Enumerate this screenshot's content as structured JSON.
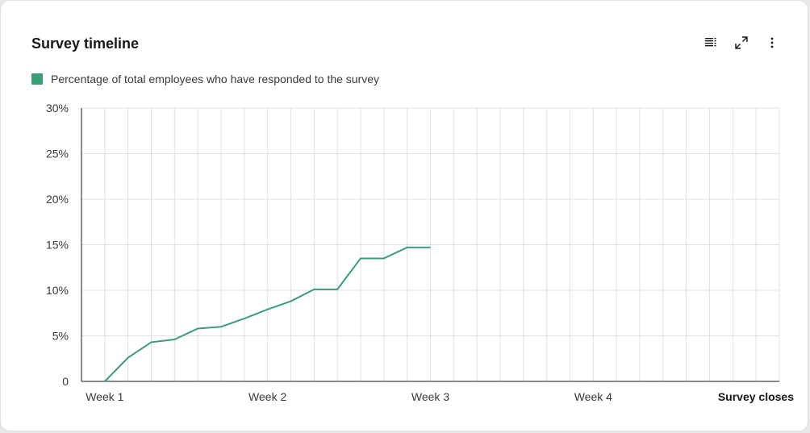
{
  "card": {
    "title": "Survey timeline"
  },
  "toolbar": {
    "table_icon": "table-view-icon",
    "expand_icon": "maximize-icon",
    "menu_icon": "overflow-menu-vertical-icon"
  },
  "legend": {
    "label": "Percentage of total employees who have responded to the survey",
    "color": "#3a9e74"
  },
  "chart_data": {
    "type": "line",
    "x_ticks": [
      "Week 1",
      "Week 2",
      "Week 3",
      "Week 4",
      "Survey closes"
    ],
    "y_tick_labels": [
      "0",
      "5%",
      "10%",
      "15%",
      "20%",
      "25%",
      "30%"
    ],
    "ylim": [
      0,
      30
    ],
    "x_days": 29,
    "grid": true,
    "series": [
      {
        "name": "Percentage of total employees who have responded to the survey",
        "color": "#3a9e74",
        "points": [
          {
            "x": 1,
            "y": 0
          },
          {
            "x": 2,
            "y": 2.6
          },
          {
            "x": 3,
            "y": 4.3
          },
          {
            "x": 4,
            "y": 4.6
          },
          {
            "x": 5,
            "y": 5.8
          },
          {
            "x": 6,
            "y": 6.0
          },
          {
            "x": 7,
            "y": 6.9
          },
          {
            "x": 8,
            "y": 7.9
          },
          {
            "x": 9,
            "y": 8.8
          },
          {
            "x": 10,
            "y": 10.1
          },
          {
            "x": 11,
            "y": 10.1
          },
          {
            "x": 12,
            "y": 13.5
          },
          {
            "x": 13,
            "y": 13.5
          },
          {
            "x": 14,
            "y": 14.7
          },
          {
            "x": 15,
            "y": 14.7
          }
        ]
      }
    ]
  }
}
